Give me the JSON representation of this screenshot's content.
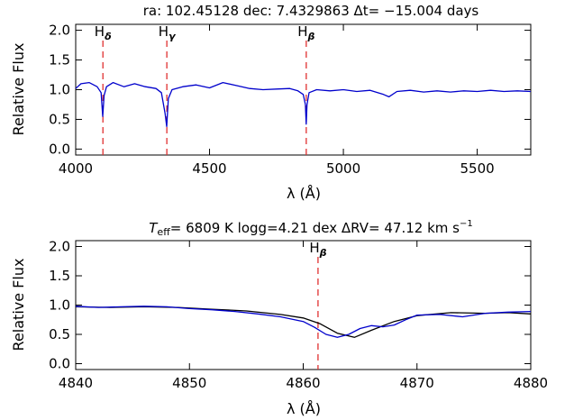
{
  "chart_data": [
    {
      "type": "line",
      "title": "ra: 102.45128   dec: 7.4329863   Δt= −15.004 days",
      "xlabel": "λ (Å)",
      "ylabel": "Relative Flux",
      "xlim": [
        4000,
        5700
      ],
      "ylim": [
        -0.1,
        2.1
      ],
      "xticks": [
        "4000",
        "4500",
        "5000",
        "5500"
      ],
      "yticks": [
        "0.0",
        "0.5",
        "1.0",
        "1.5",
        "2.0"
      ],
      "grid": false,
      "series": [
        {
          "color": "#0000cc",
          "x": [
            4000,
            4020,
            4050,
            4080,
            4095,
            4101,
            4106,
            4115,
            4140,
            4180,
            4220,
            4260,
            4300,
            4320,
            4334,
            4340,
            4346,
            4360,
            4400,
            4450,
            4500,
            4550,
            4600,
            4650,
            4700,
            4750,
            4800,
            4830,
            4850,
            4858,
            4861,
            4864,
            4872,
            4900,
            4950,
            5000,
            5050,
            5100,
            5150,
            5170,
            5200,
            5250,
            5300,
            5350,
            5400,
            5450,
            5500,
            5550,
            5600,
            5650,
            5700
          ],
          "y": [
            1.02,
            1.1,
            1.12,
            1.05,
            0.95,
            0.55,
            0.9,
            1.05,
            1.12,
            1.05,
            1.1,
            1.05,
            1.02,
            0.95,
            0.6,
            0.38,
            0.85,
            1.0,
            1.05,
            1.08,
            1.03,
            1.12,
            1.07,
            1.02,
            1.0,
            1.01,
            1.02,
            0.98,
            0.92,
            0.75,
            0.42,
            0.75,
            0.95,
            1.0,
            0.98,
            1.0,
            0.97,
            0.99,
            0.92,
            0.88,
            0.97,
            0.99,
            0.96,
            0.98,
            0.96,
            0.98,
            0.97,
            0.99,
            0.97,
            0.98,
            0.97
          ]
        }
      ],
      "line_ids": [
        {
          "label": "H",
          "sub": "δ",
          "x": 4101.7
        },
        {
          "label": "H",
          "sub": "γ",
          "x": 4340.5
        },
        {
          "label": "H",
          "sub": "β",
          "x": 4861.3
        }
      ]
    },
    {
      "type": "line",
      "title_parts": {
        "teff_symbol": "T",
        "teff_sub": "eff",
        "teff_text": "= 6809 K   logg=4.21 dex   ΔRV= 47.12 km s",
        "rv_exp": "−1"
      },
      "xlabel": "λ (Å)",
      "ylabel": "Relative Flux",
      "xlim": [
        4840,
        4880
      ],
      "ylim": [
        -0.1,
        2.1
      ],
      "xticks": [
        "4840",
        "4850",
        "4860",
        "4870",
        "4880"
      ],
      "yticks": [
        "0.0",
        "0.5",
        "1.0",
        "1.5",
        "2.0"
      ],
      "grid": false,
      "series": [
        {
          "color": "#000000",
          "x": [
            4840,
            4843,
            4846,
            4849,
            4852,
            4855,
            4858,
            4860,
            4861.5,
            4863,
            4864.5,
            4866,
            4868,
            4870,
            4873,
            4876,
            4878,
            4880
          ],
          "y": [
            0.97,
            0.96,
            0.97,
            0.96,
            0.93,
            0.9,
            0.84,
            0.78,
            0.68,
            0.52,
            0.45,
            0.57,
            0.72,
            0.82,
            0.87,
            0.86,
            0.87,
            0.85
          ]
        },
        {
          "color": "#0000cc",
          "x": [
            4840,
            4842,
            4844,
            4846,
            4848,
            4850,
            4852,
            4854,
            4856,
            4858,
            4860,
            4861,
            4862,
            4863,
            4864,
            4865,
            4866,
            4867,
            4868,
            4869,
            4870,
            4872,
            4874,
            4876,
            4878,
            4880
          ],
          "y": [
            0.98,
            0.96,
            0.97,
            0.98,
            0.97,
            0.94,
            0.92,
            0.89,
            0.85,
            0.8,
            0.72,
            0.62,
            0.5,
            0.45,
            0.5,
            0.6,
            0.65,
            0.63,
            0.66,
            0.75,
            0.83,
            0.84,
            0.8,
            0.86,
            0.88,
            0.89
          ]
        }
      ],
      "line_ids": [
        {
          "label": "H",
          "sub": "β",
          "x": 4861.3
        }
      ]
    }
  ]
}
